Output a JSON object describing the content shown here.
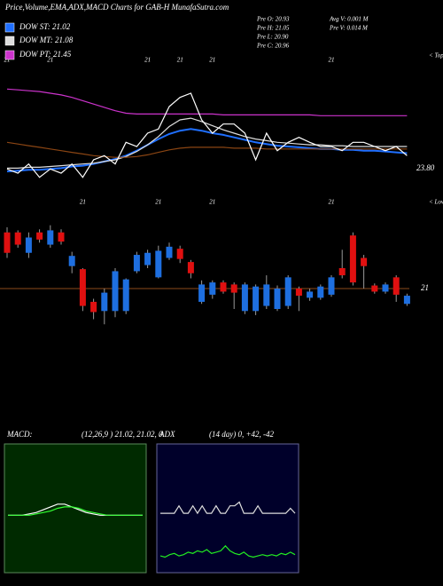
{
  "chart_data": [
    {
      "type": "line",
      "title": "Price,Volume,EMA,ADX,MACD Charts for GAB-H MunafaSutra.com",
      "info": [
        "Pre  O: 20.93",
        "Avg V: 0.001 M",
        "Pre  H: 21.05",
        "Pre  V: 0.014  M",
        "Pre  L: 20.90",
        "Pre  C: 20.96"
      ],
      "annotations": [
        "< Tops",
        "23.80"
      ],
      "categories": [
        "21",
        null,
        null,
        null,
        "21",
        null,
        null,
        null,
        null,
        null,
        null,
        null,
        null,
        "21",
        null,
        null,
        "21",
        null,
        null,
        "21",
        null,
        null,
        null,
        null,
        null,
        null,
        null,
        null,
        null,
        null,
        "21",
        null,
        null,
        null,
        null,
        null,
        null,
        null
      ],
      "ylim": [
        20.6,
        22.2
      ],
      "series": [
        {
          "name": "DOW ST: 21.02",
          "color": "#1f6fff",
          "values": [
            20.78,
            20.79,
            20.8,
            20.8,
            20.81,
            20.82,
            20.84,
            20.85,
            20.87,
            20.9,
            20.93,
            20.97,
            21.03,
            21.1,
            21.17,
            21.23,
            21.27,
            21.29,
            21.27,
            21.24,
            21.22,
            21.19,
            21.16,
            21.13,
            21.11,
            21.09,
            21.08,
            21.07,
            21.06,
            21.05,
            21.05,
            21.04,
            21.04,
            21.03,
            21.03,
            21.02,
            21.01,
            21.0
          ]
        },
        {
          "name": "DOW MT: 21.08",
          "color": "#dddddd",
          "values": [
            20.82,
            20.82,
            20.83,
            20.83,
            20.84,
            20.85,
            20.86,
            20.87,
            20.88,
            20.9,
            20.92,
            20.96,
            21.02,
            21.1,
            21.2,
            21.32,
            21.4,
            21.42,
            21.38,
            21.33,
            21.28,
            21.24,
            21.2,
            21.17,
            21.15,
            21.13,
            21.12,
            21.11,
            21.1,
            21.1,
            21.09,
            21.09,
            21.08,
            21.08,
            21.08,
            21.08,
            21.08,
            21.08
          ]
        },
        {
          "name": "DOW PT: 21.45",
          "color": "#cc33cc",
          "values": [
            21.77,
            21.76,
            21.75,
            21.74,
            21.72,
            21.7,
            21.67,
            21.63,
            21.59,
            21.55,
            21.51,
            21.48,
            21.47,
            21.47,
            21.47,
            21.47,
            21.47,
            21.47,
            21.47,
            21.47,
            21.46,
            21.46,
            21.46,
            21.46,
            21.46,
            21.46,
            21.46,
            21.46,
            21.46,
            21.45,
            21.45,
            21.45,
            21.45,
            21.45,
            21.45,
            21.45,
            21.45,
            21.45
          ]
        },
        {
          "color": "#8b4513",
          "values": [
            21.13,
            21.11,
            21.09,
            21.07,
            21.05,
            21.03,
            21.01,
            20.99,
            20.97,
            20.96,
            20.95,
            20.95,
            20.96,
            20.98,
            21.01,
            21.04,
            21.06,
            21.07,
            21.07,
            21.07,
            21.07,
            21.06,
            21.06,
            21.06,
            21.05,
            21.05,
            21.05,
            21.05,
            21.05,
            21.05,
            21.05,
            21.05,
            21.05,
            21.05,
            21.05,
            21.05,
            21.05,
            21.05
          ]
        },
        {
          "color": "#ffffff",
          "values": [
            20.81,
            20.76,
            20.87,
            20.71,
            20.81,
            20.76,
            20.87,
            20.71,
            20.92,
            20.97,
            20.87,
            21.13,
            21.08,
            21.24,
            21.29,
            21.56,
            21.67,
            21.72,
            21.4,
            21.24,
            21.35,
            21.35,
            21.24,
            20.92,
            21.24,
            21.03,
            21.13,
            21.19,
            21.13,
            21.08,
            21.08,
            21.03,
            21.13,
            21.13,
            21.08,
            21.03,
            21.08,
            20.97
          ]
        }
      ]
    },
    {
      "type": "candlestick",
      "annotations": [
        "< Lows"
      ],
      "categories": [
        null,
        null,
        null,
        null,
        null,
        null,
        null,
        "21",
        null,
        null,
        null,
        null,
        null,
        null,
        "21",
        null,
        null,
        null,
        null,
        "21",
        null,
        null,
        null,
        null,
        null,
        null,
        null,
        null,
        null,
        null,
        "21",
        null,
        null,
        null,
        null,
        null,
        null,
        null
      ],
      "ylim": [
        20,
        22
      ],
      "yticks": [
        21
      ],
      "grid_color": "#8b4a1a",
      "up_color": "#1e6fe0",
      "down_color": "#e01010",
      "open": [
        21.55,
        21.55,
        21.35,
        21.55,
        21.43,
        21.55,
        21.22,
        21.19,
        20.87,
        20.78,
        20.78,
        20.78,
        21.17,
        21.23,
        21.11,
        21.3,
        21.39,
        21.26,
        20.87,
        20.94,
        21.06,
        21.04,
        20.78,
        20.78,
        20.83,
        20.8,
        20.83,
        21.0,
        20.91,
        20.91,
        20.94,
        21.2,
        21.52,
        21.3,
        21.03,
        20.97,
        21.11,
        20.85
      ],
      "high": [
        21.6,
        21.57,
        21.55,
        21.58,
        21.62,
        21.58,
        21.36,
        21.2,
        20.9,
        21.0,
        21.2,
        21.1,
        21.36,
        21.38,
        21.42,
        21.45,
        21.42,
        21.28,
        21.08,
        21.08,
        21.08,
        21.06,
        21.06,
        21.04,
        21.13,
        21.03,
        21.13,
        21.02,
        21.0,
        21.04,
        21.13,
        21.38,
        21.55,
        21.33,
        21.05,
        21.06,
        21.13,
        20.95
      ],
      "low": [
        21.3,
        21.4,
        21.3,
        21.45,
        21.4,
        21.43,
        21.15,
        20.78,
        20.7,
        20.65,
        20.72,
        20.75,
        21.15,
        21.2,
        21.1,
        21.28,
        21.25,
        21.1,
        20.85,
        20.9,
        20.95,
        20.8,
        20.75,
        20.74,
        20.8,
        20.78,
        20.8,
        20.78,
        20.88,
        20.89,
        20.92,
        21.1,
        21.03,
        21.0,
        20.95,
        20.95,
        20.87,
        20.83
      ],
      "close": [
        21.35,
        21.43,
        21.5,
        21.48,
        21.57,
        21.46,
        21.32,
        20.83,
        20.77,
        20.96,
        21.17,
        21.09,
        21.33,
        21.35,
        21.37,
        21.41,
        21.29,
        21.15,
        21.04,
        21.06,
        20.97,
        20.96,
        21.04,
        21.02,
        21.04,
        21.0,
        21.11,
        20.93,
        20.97,
        21.02,
        21.11,
        21.13,
        21.06,
        21.22,
        20.97,
        21.04,
        20.94,
        20.93
      ]
    },
    {
      "type": "line",
      "title": "MACD:",
      "subtitle": "(12,26,9 ) 21.02, 21.02, 0",
      "categories": [
        null,
        null,
        null,
        null,
        null,
        null,
        null,
        null,
        null,
        null,
        null,
        null,
        null,
        null,
        null,
        null,
        null,
        null,
        null,
        null
      ],
      "ylim": [
        -0.4,
        0.5
      ],
      "series": [
        {
          "color": "#ffffff",
          "values": [
            0,
            0,
            0,
            0.01,
            0.02,
            0.04,
            0.06,
            0.08,
            0.08,
            0.06,
            0.04,
            0.02,
            0.01,
            0,
            0,
            0,
            0,
            0,
            0,
            0
          ]
        },
        {
          "color": "#33ff33",
          "values": [
            0,
            0,
            0,
            0,
            0.01,
            0.02,
            0.03,
            0.05,
            0.06,
            0.06,
            0.05,
            0.03,
            0.02,
            0.01,
            0,
            0,
            0,
            0,
            0,
            0
          ]
        }
      ]
    },
    {
      "type": "line",
      "title": "ADX",
      "subtitle": "(14  day) 0,  +42,  -42",
      "categories": [
        null,
        null,
        null,
        null,
        null,
        null,
        null,
        null,
        null,
        null,
        null,
        null,
        null,
        null,
        null,
        null,
        null,
        null,
        null,
        null,
        null,
        null,
        null,
        null,
        null,
        null,
        null,
        null,
        null,
        null
      ],
      "ylim": [
        0,
        100
      ],
      "series": [
        {
          "color": "#dddddd",
          "values": [
            46,
            46,
            46,
            46,
            52,
            46,
            46,
            52,
            46,
            52,
            46,
            46,
            52,
            46,
            46,
            52,
            52,
            55,
            46,
            46,
            46,
            52,
            46,
            46,
            46,
            46,
            46,
            46,
            50,
            46
          ]
        },
        {
          "color": "#22ee22",
          "values": [
            12,
            11,
            13,
            14,
            12,
            13,
            15,
            14,
            16,
            15,
            17,
            14,
            15,
            16,
            20,
            16,
            14,
            13,
            15,
            12,
            11,
            12,
            13,
            12,
            13,
            12,
            14,
            13,
            15,
            13
          ]
        }
      ]
    }
  ]
}
